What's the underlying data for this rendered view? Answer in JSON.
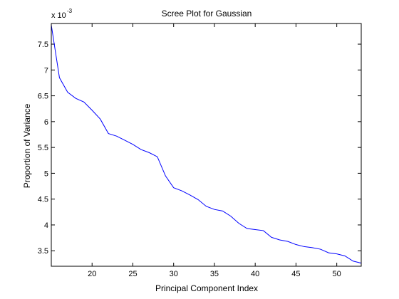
{
  "chart_data": {
    "type": "line",
    "title": "Scree Plot for Gaussian",
    "xlabel": "Principal Component Index",
    "ylabel": "Proportion of Variance",
    "y_multiplier": {
      "base": "x 10",
      "exponent": "-3"
    },
    "xlim": [
      15,
      53
    ],
    "ylim": [
      3.2,
      7.9
    ],
    "xticks": [
      20,
      25,
      30,
      35,
      40,
      45,
      50
    ],
    "xtick_labels": [
      "20",
      "25",
      "30",
      "35",
      "40",
      "45",
      "50"
    ],
    "yticks": [
      3.5,
      4,
      4.5,
      5,
      5.5,
      6,
      6.5,
      7,
      7.5
    ],
    "ytick_labels": [
      "3.5",
      "4",
      "4.5",
      "5",
      "5.5",
      "6",
      "6.5",
      "7",
      "7.5"
    ],
    "grid": false,
    "line_color": "#0000ff",
    "series": [
      {
        "x": [
          15,
          16,
          17,
          18,
          19,
          20,
          21,
          22,
          23,
          24,
          25,
          26,
          27,
          28,
          29,
          30,
          31,
          32,
          33,
          34,
          35,
          36,
          37,
          38,
          39,
          40,
          41,
          42,
          43,
          44,
          45,
          46,
          47,
          48,
          49,
          50,
          51,
          52,
          53
        ],
        "values": [
          7.87,
          6.85,
          6.57,
          6.45,
          6.38,
          6.22,
          6.05,
          5.77,
          5.72,
          5.64,
          5.56,
          5.46,
          5.4,
          5.32,
          4.95,
          4.72,
          4.66,
          4.58,
          4.49,
          4.36,
          4.3,
          4.27,
          4.17,
          4.03,
          3.93,
          3.91,
          3.89,
          3.76,
          3.71,
          3.68,
          3.62,
          3.58,
          3.56,
          3.53,
          3.46,
          3.44,
          3.4,
          3.3,
          3.26
        ]
      }
    ]
  }
}
